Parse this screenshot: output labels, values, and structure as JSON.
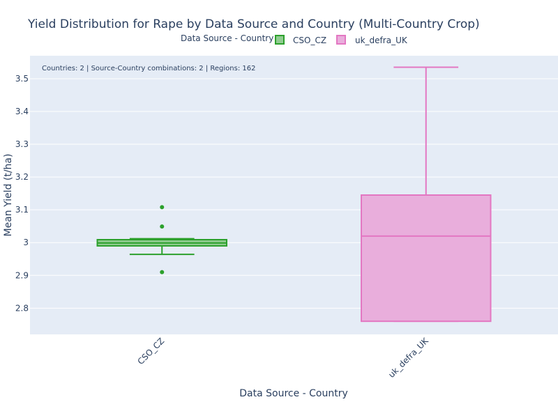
{
  "chart_data": {
    "type": "box",
    "title": "Yield Distribution for Rape by Data Source and Country (Multi-Country Crop)",
    "xlabel": "Data Source - Country",
    "ylabel": "Mean Yield (t/ha)",
    "ylim": [
      2.72,
      3.57
    ],
    "yticks": [
      2.8,
      2.9,
      3.0,
      3.1,
      3.2,
      3.3,
      3.4,
      3.5
    ],
    "ytick_labels": [
      "2.8",
      "2.9",
      "3",
      "3.1",
      "3.2",
      "3.3",
      "3.4",
      "3.5"
    ],
    "categories": [
      "CSO_CZ",
      "uk_defra_UK"
    ],
    "legend": {
      "title": "Data Source - Country",
      "placement": "top-center",
      "items": [
        "CSO_CZ",
        "uk_defra_UK"
      ]
    },
    "annotation": "Countries: 2 | Source-Country combinations: 2 | Regions: 162",
    "grid": true,
    "series": [
      {
        "name": "CSO_CZ",
        "color": "#2ca02c",
        "fill": "#91cc91",
        "lowerfence": 2.964,
        "q1": 2.99,
        "median": 2.999,
        "q3": 3.009,
        "upperfence": 3.012,
        "outliers": [
          3.108,
          3.049,
          2.91
        ]
      },
      {
        "name": "uk_defra_UK",
        "color": "#e377c2",
        "fill": "#e9aedc",
        "lowerfence": 2.76,
        "q1": 2.76,
        "median": 3.02,
        "q3": 3.145,
        "upperfence": 3.535,
        "outliers": []
      }
    ]
  }
}
